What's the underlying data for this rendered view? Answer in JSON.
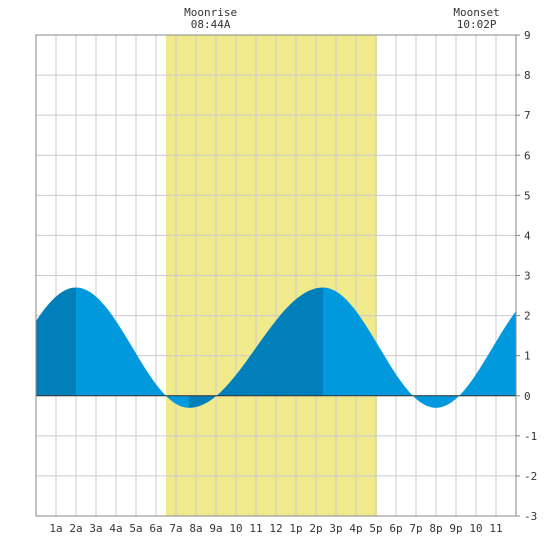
{
  "chart_data": {
    "type": "area",
    "x_unit": "hour",
    "x_range": [
      0,
      24
    ],
    "ylim": [
      -3,
      9
    ],
    "y_ticks": [
      -3,
      -2,
      -1,
      0,
      1,
      2,
      3,
      4,
      5,
      6,
      7,
      8,
      9
    ],
    "x_ticks": [
      {
        "hour": 1,
        "label": "1a"
      },
      {
        "hour": 2,
        "label": "2a"
      },
      {
        "hour": 3,
        "label": "3a"
      },
      {
        "hour": 4,
        "label": "4a"
      },
      {
        "hour": 5,
        "label": "5a"
      },
      {
        "hour": 6,
        "label": "6a"
      },
      {
        "hour": 7,
        "label": "7a"
      },
      {
        "hour": 8,
        "label": "8a"
      },
      {
        "hour": 9,
        "label": "9a"
      },
      {
        "hour": 10,
        "label": "10"
      },
      {
        "hour": 11,
        "label": "11"
      },
      {
        "hour": 12,
        "label": "12"
      },
      {
        "hour": 13,
        "label": "1p"
      },
      {
        "hour": 14,
        "label": "2p"
      },
      {
        "hour": 15,
        "label": "3p"
      },
      {
        "hour": 16,
        "label": "4p"
      },
      {
        "hour": 17,
        "label": "5p"
      },
      {
        "hour": 18,
        "label": "6p"
      },
      {
        "hour": 19,
        "label": "7p"
      },
      {
        "hour": 20,
        "label": "8p"
      },
      {
        "hour": 21,
        "label": "9p"
      },
      {
        "hour": 22,
        "label": "10"
      },
      {
        "hour": 23,
        "label": "11"
      }
    ],
    "grid": true,
    "daylight": {
      "start_hour": 6.5,
      "end_hour": 17.05,
      "color": "#f0ea8c"
    },
    "tide_extremes": [
      {
        "hour": 2.0,
        "value": 2.7,
        "kind": "high"
      },
      {
        "hour": 7.65,
        "value": -0.3,
        "kind": "low"
      },
      {
        "hour": 14.35,
        "value": 2.7,
        "kind": "high"
      },
      {
        "hour": 20.0,
        "value": -0.3,
        "kind": "low"
      }
    ],
    "start_value": 2.05,
    "end_value": 1.55,
    "colors": {
      "fill_light": "#0099dd",
      "fill_dark": "#007fbb",
      "grid": "#cccccc",
      "frame": "#888888"
    },
    "annotations": [
      {
        "name": "moonrise",
        "label": "Moonrise",
        "time": "08:44A",
        "hour": 8.73
      },
      {
        "name": "moonset",
        "label": "Moonset",
        "time": "10:02P",
        "hour": 22.03
      }
    ]
  }
}
